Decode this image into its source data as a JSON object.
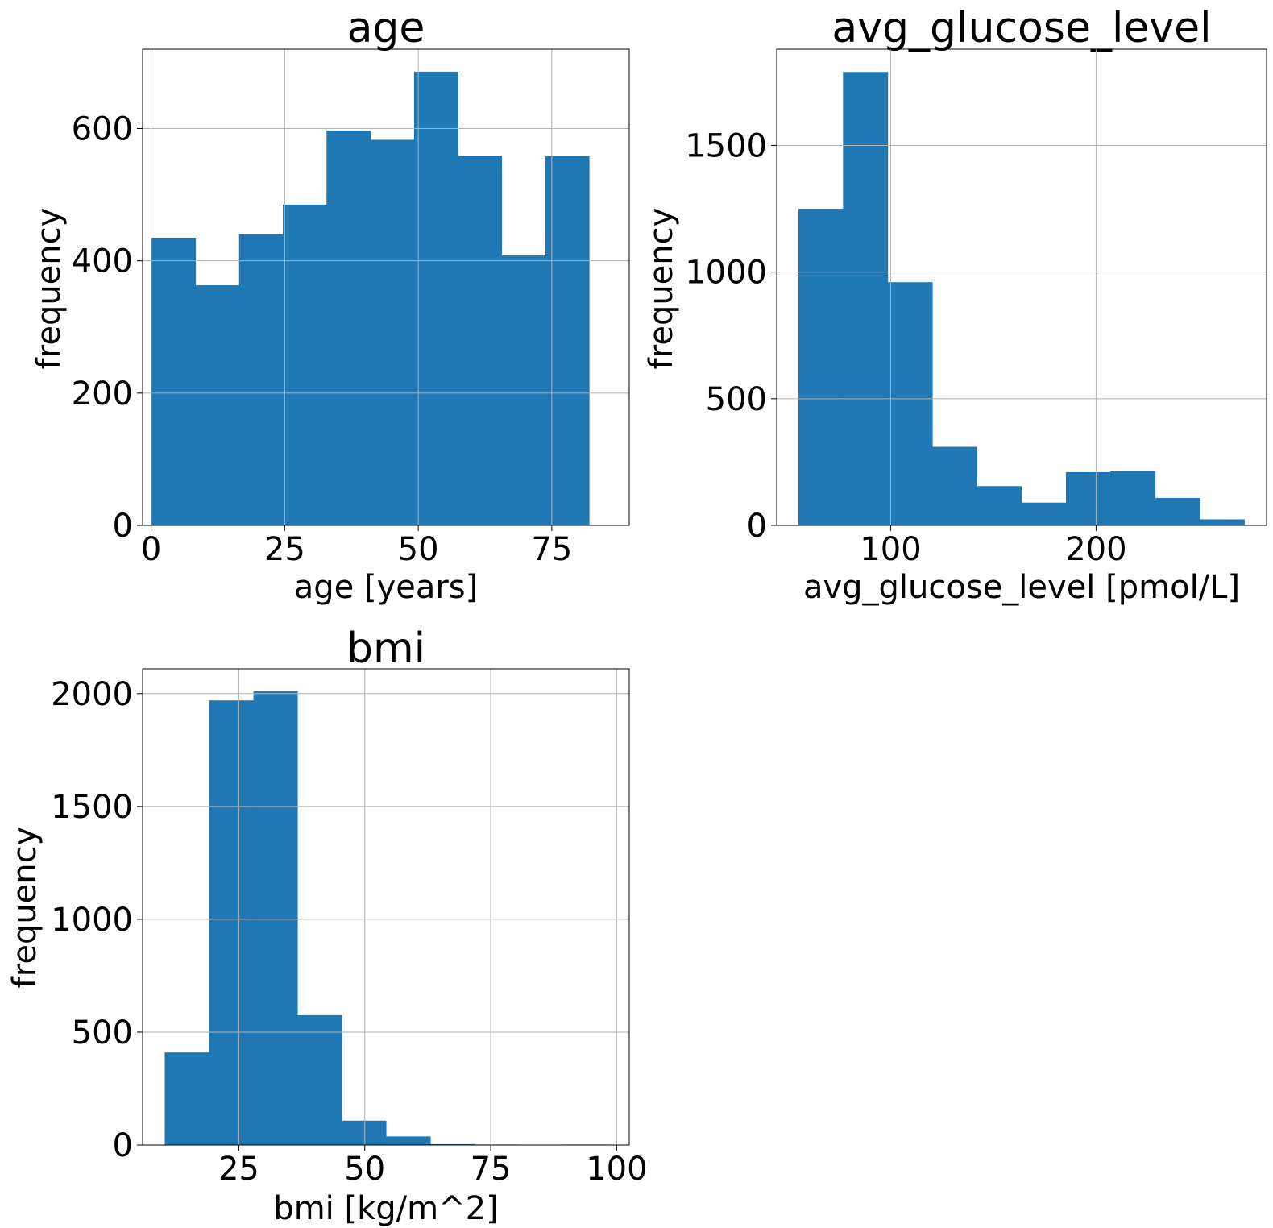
{
  "chart_data": [
    {
      "type": "bar",
      "title": "age",
      "xlabel": "age [years]",
      "ylabel": "frequency",
      "color": "#1f77b4",
      "bin_edges": [
        0.08,
        8.27,
        16.46,
        24.65,
        32.83,
        41.02,
        49.21,
        57.4,
        65.58,
        73.77,
        81.96
      ],
      "values": [
        435,
        363,
        440,
        485,
        597,
        583,
        686,
        559,
        408,
        558
      ],
      "xlim": [
        -1.6,
        89.5
      ],
      "ylim": [
        0,
        720
      ],
      "xticks": [
        0,
        25,
        50,
        75
      ],
      "xtick_labels": [
        "0",
        "25",
        "50",
        "75"
      ],
      "yticks": [
        0,
        200,
        400,
        600
      ],
      "ytick_labels": [
        "0",
        "200",
        "400",
        "600"
      ],
      "grid": true
    },
    {
      "type": "bar",
      "title": "avg_glucose_level",
      "xlabel": "avg_glucose_level [pmol/L]",
      "ylabel": "frequency",
      "color": "#1f77b4",
      "bin_edges": [
        55.1,
        76.8,
        98.5,
        120.2,
        141.9,
        163.6,
        185.3,
        207.0,
        228.7,
        250.4,
        272.1
      ],
      "values": [
        1250,
        1790,
        960,
        310,
        155,
        90,
        210,
        215,
        108,
        24
      ],
      "xlim": [
        44.5,
        283.0
      ],
      "ylim": [
        0,
        1880
      ],
      "xticks": [
        100,
        200
      ],
      "xtick_labels": [
        "100",
        "200"
      ],
      "yticks": [
        0,
        500,
        1000,
        1500
      ],
      "ytick_labels": [
        "0",
        "500",
        "1000",
        "1500"
      ],
      "grid": true
    },
    {
      "type": "bar",
      "title": "bmi",
      "xlabel": "bmi [kg/m^2]",
      "ylabel": "frequency",
      "color": "#1f77b4",
      "bin_edges": [
        10.3,
        19.1,
        27.9,
        36.6,
        45.4,
        54.2,
        63.0,
        71.8,
        80.5,
        89.3,
        98.1
      ],
      "values": [
        410,
        1970,
        2010,
        575,
        108,
        38,
        4,
        2,
        1,
        2
      ],
      "xlim": [
        5.9,
        102.5
      ],
      "ylim": [
        0,
        2110
      ],
      "xticks": [
        25,
        50,
        75,
        100
      ],
      "xtick_labels": [
        "25",
        "50",
        "75",
        "100"
      ],
      "yticks": [
        0,
        500,
        1000,
        1500,
        2000
      ],
      "ytick_labels": [
        "0",
        "500",
        "1000",
        "1500",
        "2000"
      ],
      "grid": true
    }
  ]
}
